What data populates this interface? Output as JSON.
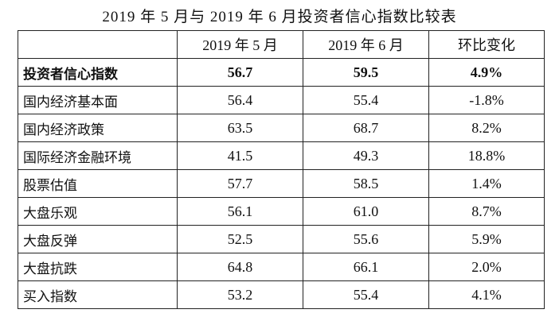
{
  "title": "2019 年 5 月与 2019 年 6 月投资者信心指数比较表",
  "table": {
    "header": [
      "2019 年 5 月",
      "2019 年 6 月",
      "环比变化"
    ],
    "rows": [
      [
        "投资者信心指数",
        "56.7",
        "59.5",
        "4.9%"
      ],
      [
        "国内经济基本面",
        "56.4",
        "55.4",
        "-1.8%"
      ],
      [
        "国内经济政策",
        "63.5",
        "68.7",
        "8.2%"
      ],
      [
        "国际经济金融环境",
        "41.5",
        "49.3",
        "18.8%"
      ],
      [
        "股票估值",
        "57.7",
        "58.5",
        "1.4%"
      ],
      [
        "大盘乐观",
        "56.1",
        "61.0",
        "8.7%"
      ],
      [
        "大盘反弹",
        "52.5",
        "55.6",
        "5.9%"
      ],
      [
        "大盘抗跌",
        "64.8",
        "66.1",
        "2.0%"
      ],
      [
        "买入指数",
        "53.2",
        "55.4",
        "4.1%"
      ]
    ]
  }
}
